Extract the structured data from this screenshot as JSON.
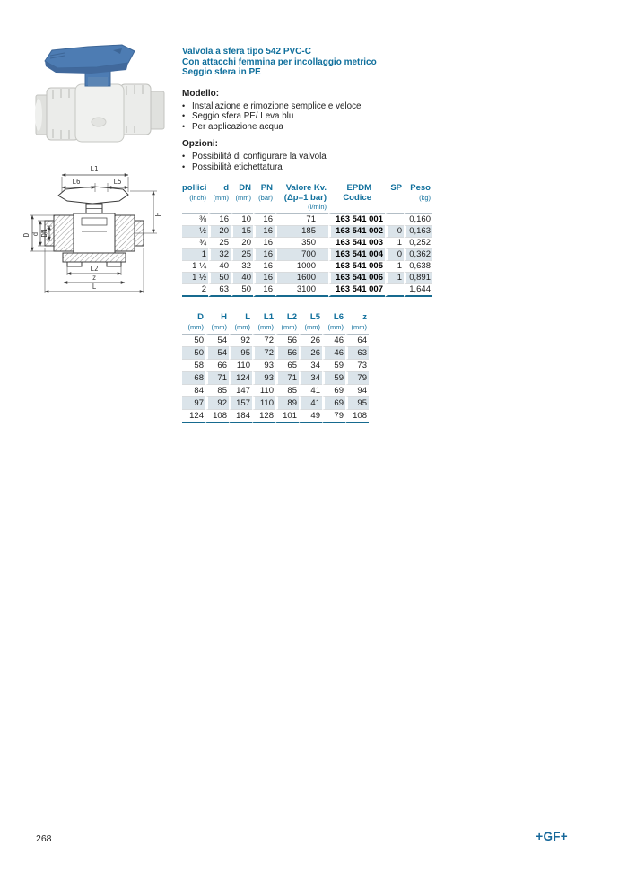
{
  "page": {
    "number": "268",
    "logo": "+GF+"
  },
  "colors": {
    "accent_blue": "#0f6f9c",
    "table_line_teal": "#166a8f",
    "row_shade": "#dbe4ea",
    "handle_blue": "#4d7cb3",
    "body_text": "#1c1c1c"
  },
  "product": {
    "title_line1": "Valvola a sfera tipo 542 PVC-C",
    "title_line2": "Con attacchi femmina per incollaggio metrico",
    "title_line3": "Seggio sfera in PE",
    "model_heading": "Modello:",
    "model_bullets": [
      "Installazione e rimozione semplice e veloce",
      "Seggio sfera PE/ Leva blu",
      "Per applicazione acqua"
    ],
    "options_heading": "Opzioni:",
    "options_bullets": [
      "Possibilità di configurare la valvola",
      "Possibilità etichettatura"
    ]
  },
  "spec_table": {
    "columns": [
      {
        "lines": [
          "pollici"
        ],
        "sub": "(inch)"
      },
      {
        "lines": [
          "d"
        ],
        "sub": "(mm)"
      },
      {
        "lines": [
          "DN"
        ],
        "sub": "(mm)"
      },
      {
        "lines": [
          "PN"
        ],
        "sub": "(bar)"
      },
      {
        "lines": [
          "Valore Kv.",
          "(Δp=1 bar)"
        ],
        "sub": "(l/min)"
      },
      {
        "lines": [
          "EPDM",
          "Codice"
        ],
        "sub": ""
      },
      {
        "lines": [
          "SP"
        ],
        "sub": ""
      },
      {
        "lines": [
          "Peso"
        ],
        "sub": "(kg)"
      }
    ],
    "rows": [
      [
        "⅜",
        "16",
        "10",
        "16",
        "71",
        "163 541 001",
        "",
        "0,160"
      ],
      [
        "½",
        "20",
        "15",
        "16",
        "185",
        "163 541 002",
        "0",
        "0,163"
      ],
      [
        "¾",
        "25",
        "20",
        "16",
        "350",
        "163 541 003",
        "1",
        "0,252"
      ],
      [
        "1",
        "32",
        "25",
        "16",
        "700",
        "163 541 004",
        "0",
        "0,362"
      ],
      [
        "1 ¼",
        "40",
        "32",
        "16",
        "1000",
        "163 541 005",
        "1",
        "0,638"
      ],
      [
        "1 ½",
        "50",
        "40",
        "16",
        "1600",
        "163 541 006",
        "1",
        "0,891"
      ],
      [
        "2",
        "63",
        "50",
        "16",
        "3100",
        "163 541 007",
        "",
        "1,644"
      ]
    ]
  },
  "dim_table": {
    "columns": [
      "D",
      "H",
      "L",
      "L1",
      "L2",
      "L5",
      "L6",
      "z"
    ],
    "unit": "(mm)",
    "rows": [
      [
        "50",
        "54",
        "92",
        "72",
        "56",
        "26",
        "46",
        "64"
      ],
      [
        "50",
        "54",
        "95",
        "72",
        "56",
        "26",
        "46",
        "63"
      ],
      [
        "58",
        "66",
        "110",
        "93",
        "65",
        "34",
        "59",
        "73"
      ],
      [
        "68",
        "71",
        "124",
        "93",
        "71",
        "34",
        "59",
        "79"
      ],
      [
        "84",
        "85",
        "147",
        "110",
        "85",
        "41",
        "69",
        "94"
      ],
      [
        "97",
        "92",
        "157",
        "110",
        "89",
        "41",
        "69",
        "95"
      ],
      [
        "124",
        "108",
        "184",
        "128",
        "101",
        "49",
        "79",
        "108"
      ]
    ]
  },
  "drawing_labels": {
    "l1": "L1",
    "l6": "L6",
    "l5": "L5",
    "h": "H",
    "big_d": "D",
    "small_d": "d",
    "dn": "DN",
    "l2": "L2",
    "z": "z",
    "l": "L"
  }
}
